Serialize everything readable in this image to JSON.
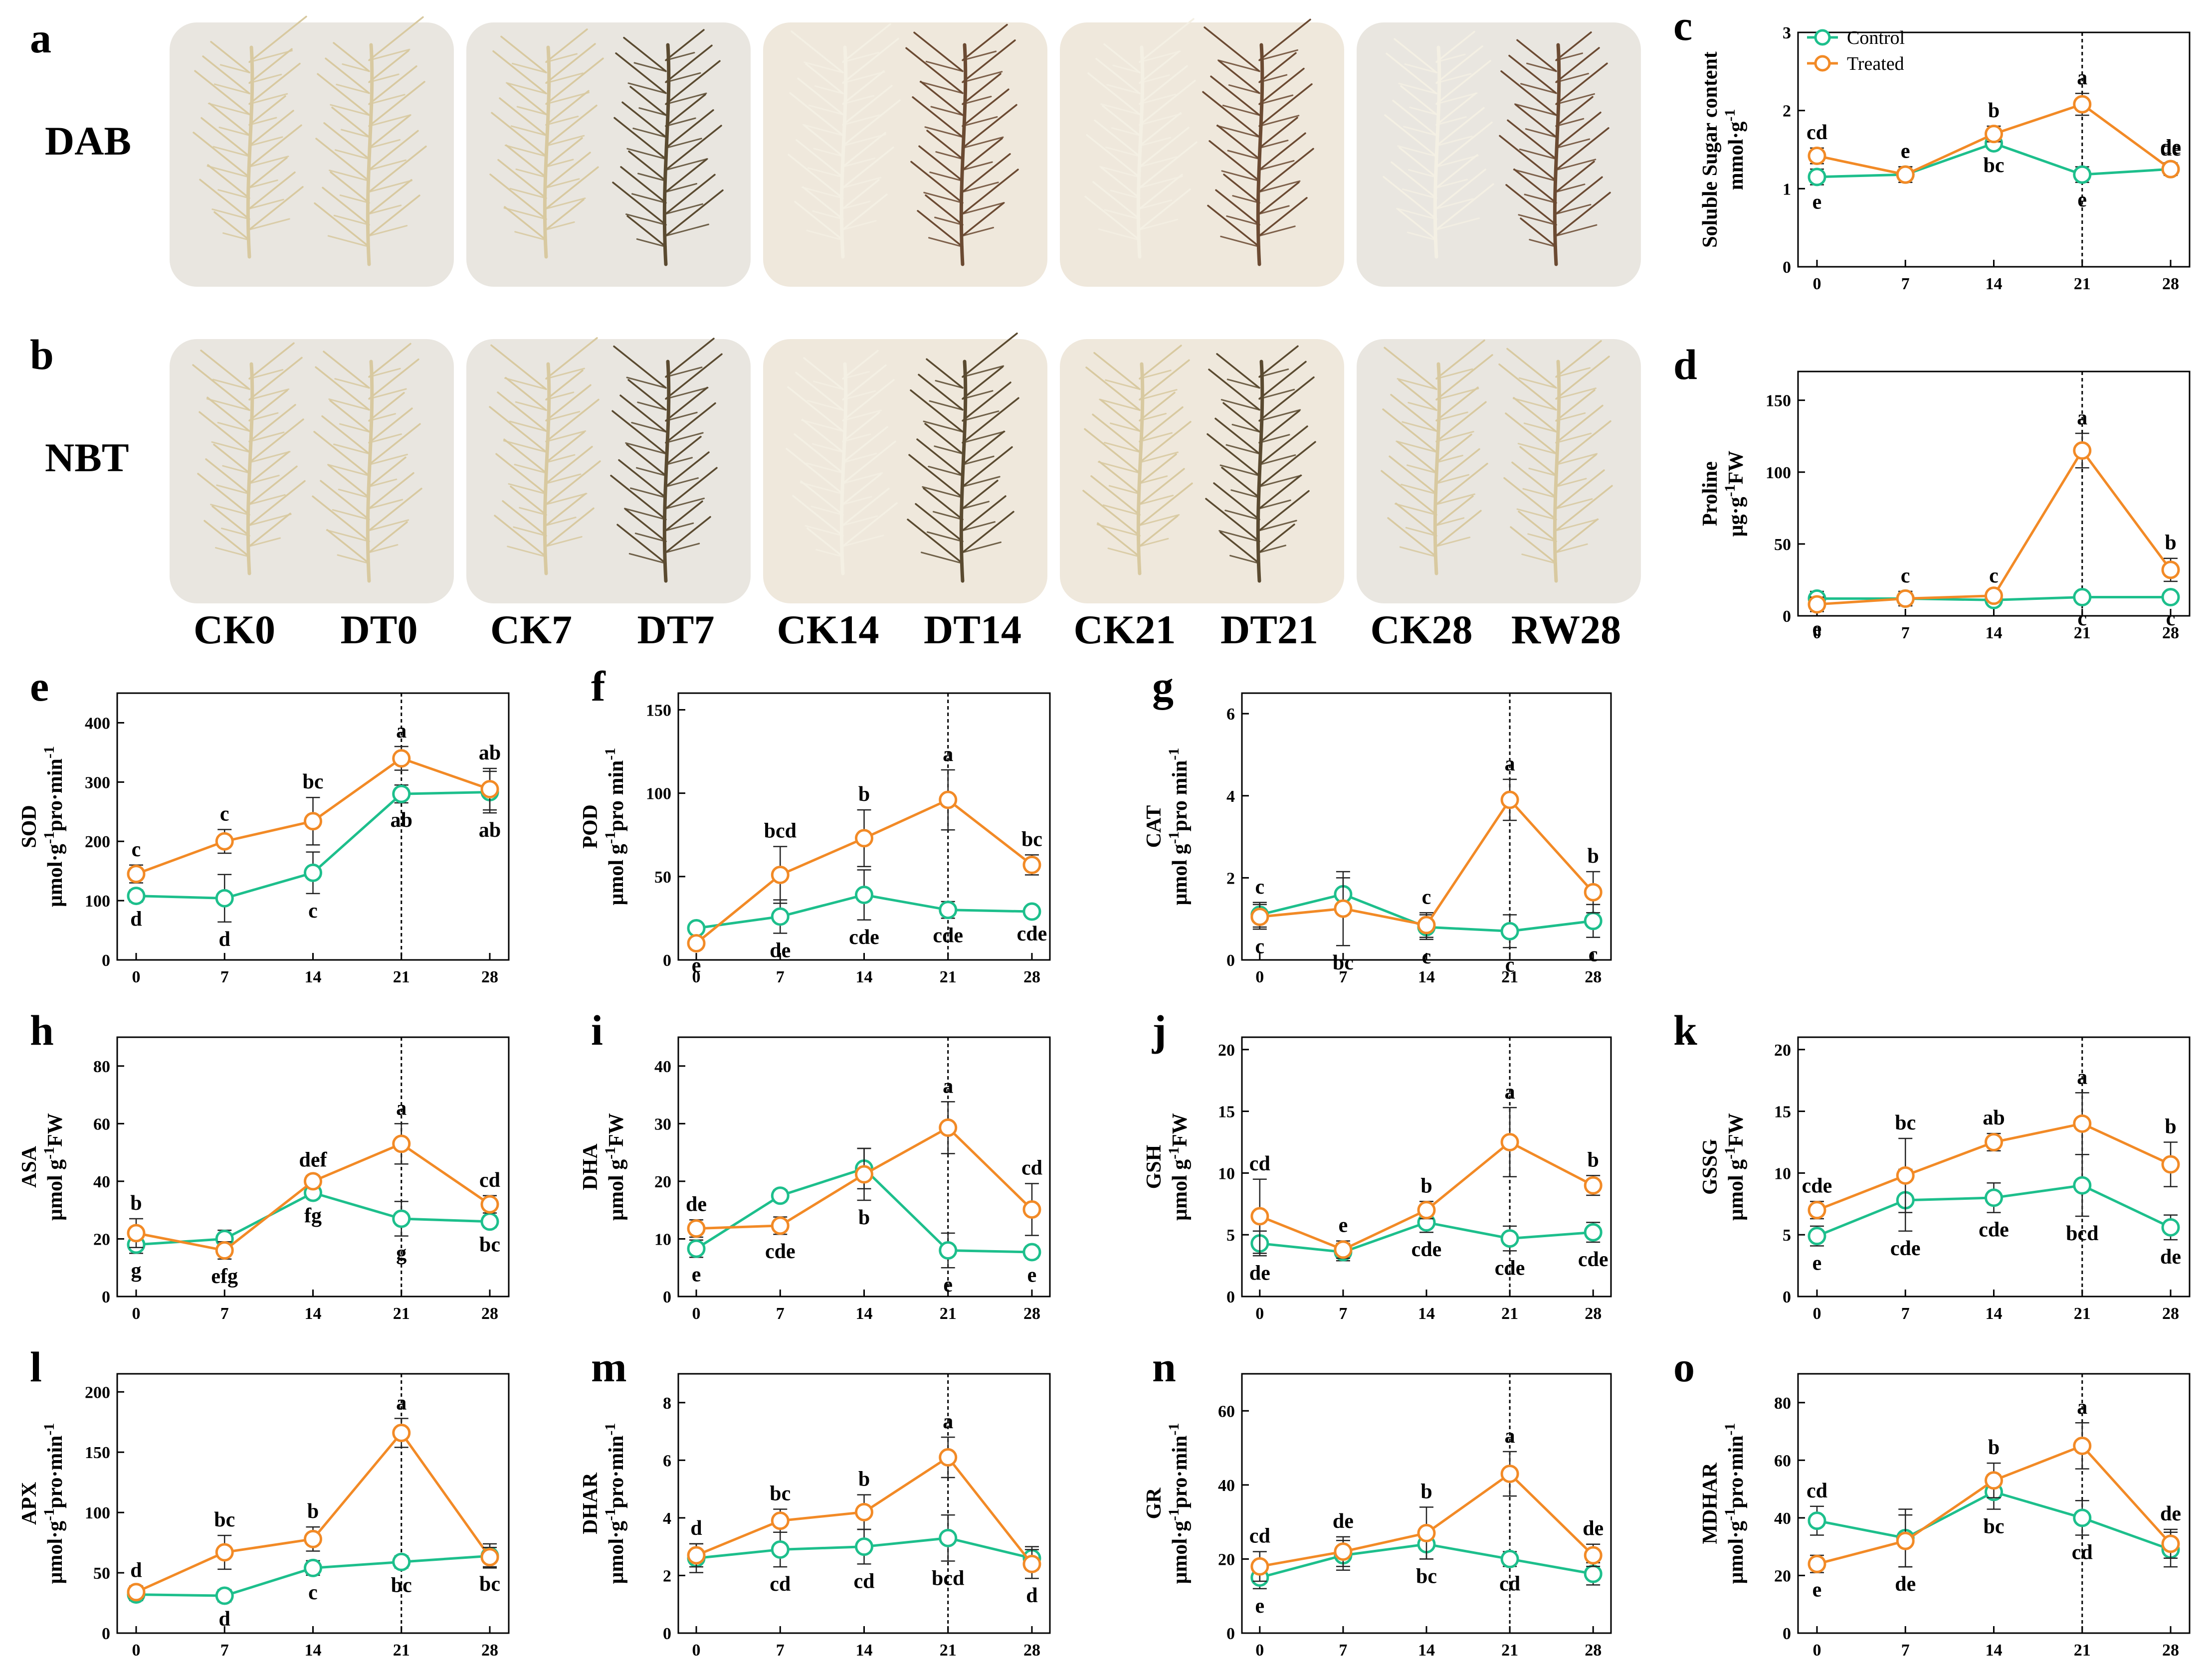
{
  "colors": {
    "control": "#1dbf8c",
    "treated": "#f28a26",
    "photo_bg_light": "#e9e6e0",
    "photo_bg_cream": "#efe8dc",
    "plant_pale": "#d8c9a0",
    "plant_brown": "#6b4a32",
    "plant_dark": "#5a4a30",
    "plant_white": "#f4f0e4"
  },
  "photos": {
    "rows": [
      {
        "letter": "a",
        "stain": "DAB",
        "tones": [
          [
            "plant_pale",
            "plant_pale"
          ],
          [
            "plant_pale",
            "plant_dark"
          ],
          [
            "plant_white",
            "plant_brown"
          ],
          [
            "plant_white",
            "plant_brown"
          ],
          [
            "plant_white",
            "plant_brown"
          ]
        ]
      },
      {
        "letter": "b",
        "stain": "NBT",
        "tones": [
          [
            "plant_pale",
            "plant_pale"
          ],
          [
            "plant_pale",
            "plant_dark"
          ],
          [
            "plant_white",
            "plant_dark"
          ],
          [
            "plant_pale",
            "plant_dark"
          ],
          [
            "plant_pale",
            "plant_pale"
          ]
        ]
      }
    ],
    "group_labels": [
      [
        "CK0",
        "DT0"
      ],
      [
        "CK7",
        "DT7"
      ],
      [
        "CK14",
        "DT14"
      ],
      [
        "CK21",
        "DT21"
      ],
      [
        "CK28",
        "RW28"
      ]
    ]
  },
  "legend": {
    "control": "Control",
    "treated": "Treated"
  },
  "chart_data": [
    {
      "id": "c",
      "type": "line",
      "ylabel": [
        "Soluble Sugar content",
        "mmol·g"
      ],
      "ysup": "-1",
      "ylim": [
        0,
        3
      ],
      "yticks": [
        0,
        1,
        2,
        3
      ],
      "x": [
        0,
        7,
        14,
        21,
        28
      ],
      "series": [
        {
          "name": "Control",
          "values": [
            1.15,
            1.18,
            1.58,
            1.18,
            1.25
          ],
          "err": [
            0.1,
            0.1,
            0.06,
            0.1,
            0.06
          ],
          "labels": [
            "e",
            "e",
            "bc",
            "e",
            "de"
          ]
        },
        {
          "name": "Treated",
          "values": [
            1.42,
            1.18,
            1.7,
            2.08,
            1.25
          ],
          "err": [
            0.1,
            0.1,
            0.1,
            0.14,
            0.08
          ],
          "labels": [
            "cd",
            "e",
            "b",
            "a",
            "de"
          ]
        }
      ],
      "vline": 21
    },
    {
      "id": "d",
      "type": "line",
      "ylabel": [
        "Proline",
        "μg·g",
        "FW"
      ],
      "ysup": "-1",
      "ylim": [
        0,
        170
      ],
      "yticks": [
        0,
        50,
        100,
        150
      ],
      "x": [
        0,
        7,
        14,
        21,
        28
      ],
      "series": [
        {
          "name": "Control",
          "values": [
            12,
            12,
            11,
            13,
            13
          ],
          "err": [
            5,
            5,
            3,
            3,
            3
          ],
          "labels": [
            "",
            "",
            "",
            "c",
            "c"
          ]
        },
        {
          "name": "Treated",
          "values": [
            8,
            12,
            14,
            115,
            32
          ],
          "err": [
            5,
            5,
            3,
            12,
            8
          ],
          "labels": [
            "e",
            "c",
            "c",
            "a",
            "b"
          ]
        }
      ],
      "vline": 21
    },
    {
      "id": "e",
      "type": "line",
      "ylabel": [
        "SOD",
        "μmol·g",
        "pro·min"
      ],
      "ysup": "-1",
      "ylim": [
        0,
        450
      ],
      "yticks": [
        0,
        100,
        200,
        300,
        400
      ],
      "x": [
        0,
        7,
        14,
        21,
        28
      ],
      "series": [
        {
          "name": "Control",
          "values": [
            108,
            104,
            147,
            280,
            283
          ],
          "err": [
            10,
            40,
            35,
            15,
            35
          ],
          "labels": [
            "d",
            "d",
            "c",
            "ab",
            "ab"
          ]
        },
        {
          "name": "Treated",
          "values": [
            145,
            200,
            234,
            340,
            288
          ],
          "err": [
            15,
            20,
            40,
            20,
            35
          ],
          "labels": [
            "c",
            "c",
            "bc",
            "a",
            "ab"
          ]
        }
      ],
      "vline": 21
    },
    {
      "id": "f",
      "type": "line",
      "ylabel": [
        "POD",
        "μmol g",
        "pro min"
      ],
      "ysup": "-1",
      "ylim": [
        0,
        160
      ],
      "yticks": [
        0,
        50,
        100,
        150
      ],
      "x": [
        0,
        7,
        14,
        21,
        28
      ],
      "series": [
        {
          "name": "Control",
          "values": [
            19,
            26,
            39,
            30,
            29
          ],
          "err": [
            3,
            10,
            15,
            5,
            3
          ],
          "labels": [
            "",
            "de",
            "cde",
            "cde",
            "cde"
          ]
        },
        {
          "name": "Treated",
          "values": [
            10,
            51,
            73,
            96,
            57
          ],
          "err": [
            3,
            17,
            17,
            18,
            6
          ],
          "labels": [
            "e",
            "bcd",
            "b",
            "a",
            "bc"
          ]
        }
      ],
      "vline": 21
    },
    {
      "id": "g",
      "type": "line",
      "ylabel": [
        "CAT",
        "μmol g",
        "pro min"
      ],
      "ysup": "-1",
      "ylim": [
        0,
        6.5
      ],
      "yticks": [
        0,
        2,
        4,
        6
      ],
      "x": [
        0,
        7,
        14,
        21,
        28
      ],
      "series": [
        {
          "name": "Control",
          "values": [
            1.1,
            1.6,
            0.8,
            0.7,
            0.95
          ],
          "err": [
            0.3,
            0.4,
            0.3,
            0.4,
            0.4
          ],
          "labels": [
            "c",
            "",
            "c",
            "c",
            "c"
          ]
        },
        {
          "name": "Treated",
          "values": [
            1.05,
            1.25,
            0.85,
            3.9,
            1.65
          ],
          "err": [
            0.3,
            0.9,
            0.3,
            0.5,
            0.5
          ],
          "labels": [
            "c",
            "bc",
            "c",
            "a",
            "b"
          ]
        }
      ],
      "vline": 21
    },
    {
      "id": "h",
      "type": "line",
      "ylabel": [
        "ASA",
        "μmol g",
        "FW"
      ],
      "ysup": "-1",
      "ylim": [
        0,
        90
      ],
      "yticks": [
        0,
        20,
        40,
        60,
        80
      ],
      "x": [
        0,
        7,
        14,
        21,
        28
      ],
      "series": [
        {
          "name": "Control",
          "values": [
            18,
            20,
            36,
            27,
            26
          ],
          "err": [
            3,
            3,
            2,
            6,
            2
          ],
          "labels": [
            "g",
            "",
            "fg",
            "g",
            "bc"
          ]
        },
        {
          "name": "Treated",
          "values": [
            22,
            16,
            40,
            53,
            32
          ],
          "err": [
            5,
            3,
            2,
            7,
            3
          ],
          "labels": [
            "b",
            "efg",
            "def",
            "a",
            "cd"
          ]
        }
      ],
      "vline": 21
    },
    {
      "id": "i",
      "type": "line",
      "ylabel": [
        "DHA",
        "μmol g",
        "FW"
      ],
      "ysup": "-1",
      "ylim": [
        0,
        45
      ],
      "yticks": [
        0,
        10,
        20,
        30,
        40
      ],
      "x": [
        0,
        7,
        14,
        21,
        28
      ],
      "series": [
        {
          "name": "Control",
          "values": [
            8.3,
            17.5,
            22.2,
            8,
            7.7
          ],
          "err": [
            1.5,
            1,
            3.5,
            3,
            1
          ],
          "labels": [
            "e",
            "",
            "",
            "e",
            "e"
          ]
        },
        {
          "name": "Treated",
          "values": [
            11.8,
            12.3,
            21.2,
            29.3,
            15.1
          ],
          "err": [
            1.5,
            1.5,
            4.5,
            4.5,
            4.5
          ],
          "labels": [
            "de",
            "cde",
            "b",
            "a",
            "cd"
          ]
        }
      ],
      "vline": 21
    },
    {
      "id": "j",
      "type": "line",
      "ylabel": [
        "GSH",
        "μmol g",
        "FW"
      ],
      "ysup": "-1",
      "ylim": [
        0,
        21
      ],
      "yticks": [
        0,
        5,
        10,
        15,
        20
      ],
      "x": [
        0,
        7,
        14,
        21,
        28
      ],
      "series": [
        {
          "name": "Control",
          "values": [
            4.3,
            3.6,
            6,
            4.7,
            5.2
          ],
          "err": [
            1,
            0.7,
            0.8,
            1,
            0.8
          ],
          "labels": [
            "de",
            "",
            "cde",
            "cde",
            "cde"
          ]
        },
        {
          "name": "Treated",
          "values": [
            6.5,
            3.8,
            7,
            12.5,
            9
          ],
          "err": [
            3,
            0.7,
            0.7,
            2.8,
            0.8
          ],
          "labels": [
            "cd",
            "e",
            "b",
            "a",
            "b"
          ]
        }
      ],
      "vline": 21
    },
    {
      "id": "k",
      "type": "line",
      "ylabel": [
        "GSSG",
        "μmol g",
        "FW"
      ],
      "ysup": "-1",
      "ylim": [
        0,
        21
      ],
      "yticks": [
        0,
        5,
        10,
        15,
        20
      ],
      "x": [
        0,
        7,
        14,
        21,
        28
      ],
      "series": [
        {
          "name": "Control",
          "values": [
            4.9,
            7.8,
            8,
            9,
            5.6
          ],
          "err": [
            0.8,
            2.5,
            1.2,
            2.5,
            1
          ],
          "labels": [
            "e",
            "cde",
            "cde",
            "bcd",
            "de"
          ]
        },
        {
          "name": "Treated",
          "values": [
            7,
            9.8,
            12.5,
            14,
            10.7
          ],
          "err": [
            0.7,
            3,
            0.7,
            2.5,
            1.8
          ],
          "labels": [
            "cde",
            "bc",
            "ab",
            "a",
            "b"
          ]
        }
      ],
      "vline": 21
    },
    {
      "id": "l",
      "type": "line",
      "ylabel": [
        "APX",
        "μmol·g",
        "pro·min"
      ],
      "ysup": "-1",
      "ylim": [
        0,
        215
      ],
      "yticks": [
        0,
        50,
        100,
        150,
        200
      ],
      "x": [
        0,
        7,
        14,
        21,
        28
      ],
      "series": [
        {
          "name": "Control",
          "values": [
            32,
            31,
            54,
            59,
            64
          ],
          "err": [
            5,
            5,
            6,
            5,
            10
          ],
          "labels": [
            "",
            "d",
            "c",
            "bc",
            ""
          ]
        },
        {
          "name": "Treated",
          "values": [
            34,
            67,
            78,
            166,
            63
          ],
          "err": [
            5,
            14,
            10,
            12,
            8
          ],
          "labels": [
            "d",
            "bc",
            "b",
            "a",
            "bc"
          ]
        }
      ],
      "vline": 21
    },
    {
      "id": "m",
      "type": "line",
      "ylabel": [
        "DHAR",
        "μmol·g",
        "pro·min"
      ],
      "ysup": "-1",
      "ylim": [
        0,
        9
      ],
      "yticks": [
        0,
        2,
        4,
        6,
        8
      ],
      "x": [
        0,
        7,
        14,
        21,
        28
      ],
      "series": [
        {
          "name": "Control",
          "values": [
            2.6,
            2.9,
            3,
            3.3,
            2.6
          ],
          "err": [
            0.5,
            0.6,
            0.6,
            0.8,
            0.4
          ],
          "labels": [
            "",
            "cd",
            "cd",
            "bcd",
            ""
          ]
        },
        {
          "name": "Treated",
          "values": [
            2.7,
            3.9,
            4.2,
            6.1,
            2.4
          ],
          "err": [
            0.4,
            0.4,
            0.6,
            0.7,
            0.5
          ],
          "labels": [
            "d",
            "bc",
            "b",
            "a",
            "d"
          ]
        }
      ],
      "vline": 21
    },
    {
      "id": "n",
      "type": "line",
      "ylabel": [
        "GR",
        "μmol·g",
        "pro·min"
      ],
      "ysup": "-1",
      "ylim": [
        0,
        70
      ],
      "yticks": [
        0,
        20,
        40,
        60
      ],
      "x": [
        0,
        7,
        14,
        21,
        28
      ],
      "series": [
        {
          "name": "Control",
          "values": [
            15,
            21,
            24,
            20,
            16
          ],
          "err": [
            3,
            4,
            4,
            2,
            3
          ],
          "labels": [
            "e",
            "",
            "bc",
            "cd",
            ""
          ]
        },
        {
          "name": "Treated",
          "values": [
            18,
            22,
            27,
            43,
            21
          ],
          "err": [
            4,
            4,
            7,
            6,
            3
          ],
          "labels": [
            "cd",
            "de",
            "b",
            "a",
            "de"
          ]
        }
      ],
      "vline": 21
    },
    {
      "id": "o",
      "type": "line",
      "ylabel": [
        "MDHAR",
        "μmol·g",
        "pro·min"
      ],
      "ysup": "-1",
      "ylim": [
        0,
        90
      ],
      "yticks": [
        0,
        20,
        40,
        60,
        80
      ],
      "x": [
        0,
        7,
        14,
        21,
        28
      ],
      "series": [
        {
          "name": "Control",
          "values": [
            39,
            33,
            49,
            40,
            29
          ],
          "err": [
            5,
            10,
            6,
            6,
            6
          ],
          "labels": [
            "cd",
            "",
            "bc",
            "cd",
            ""
          ]
        },
        {
          "name": "Treated",
          "values": [
            24,
            32,
            53,
            65,
            31
          ],
          "err": [
            3,
            9,
            6,
            8,
            5
          ],
          "labels": [
            "e",
            "de",
            "b",
            "a",
            "de"
          ]
        }
      ],
      "vline": 21
    }
  ]
}
